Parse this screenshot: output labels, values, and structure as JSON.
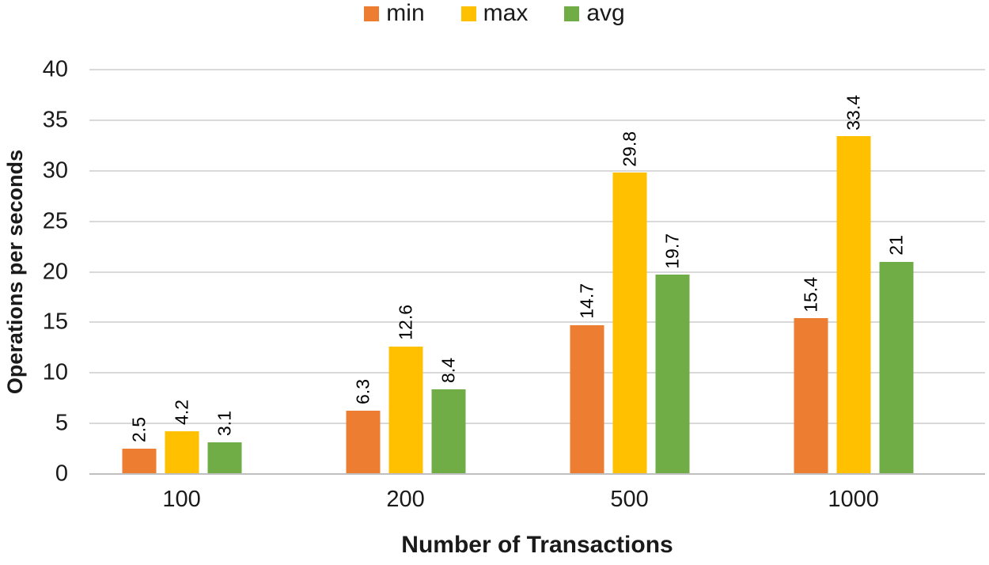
{
  "chart_data": {
    "type": "bar",
    "title": "",
    "categories": [
      "100",
      "200",
      "500",
      "1000"
    ],
    "series": [
      {
        "name": "min",
        "color": "#ED7D31",
        "values": [
          2.5,
          6.3,
          14.7,
          15.4
        ],
        "labels": [
          "2.5",
          "6.3",
          "14.7",
          "15.4"
        ]
      },
      {
        "name": "max",
        "color": "#FFC000",
        "values": [
          4.2,
          12.6,
          29.8,
          33.4
        ],
        "labels": [
          "4.2",
          "12.6",
          "29.8",
          "33.4"
        ]
      },
      {
        "name": "avg",
        "color": "#70AD47",
        "values": [
          3.1,
          8.4,
          19.7,
          21
        ],
        "labels": [
          "3.1",
          "8.4",
          "19.7",
          "21"
        ]
      }
    ],
    "xlabel": "Number of Transactions",
    "ylabel": "Operations per seconds",
    "ylim": [
      0,
      40
    ],
    "yticks": [
      0,
      5,
      10,
      15,
      20,
      25,
      30,
      35,
      40
    ],
    "grid": true,
    "legend_position": "top",
    "data_labels_rotation": "vertical"
  },
  "colors": {
    "gridline": "#D9D9D9",
    "axis_line": "#BFBFBF",
    "text": "#1A1A1A"
  }
}
